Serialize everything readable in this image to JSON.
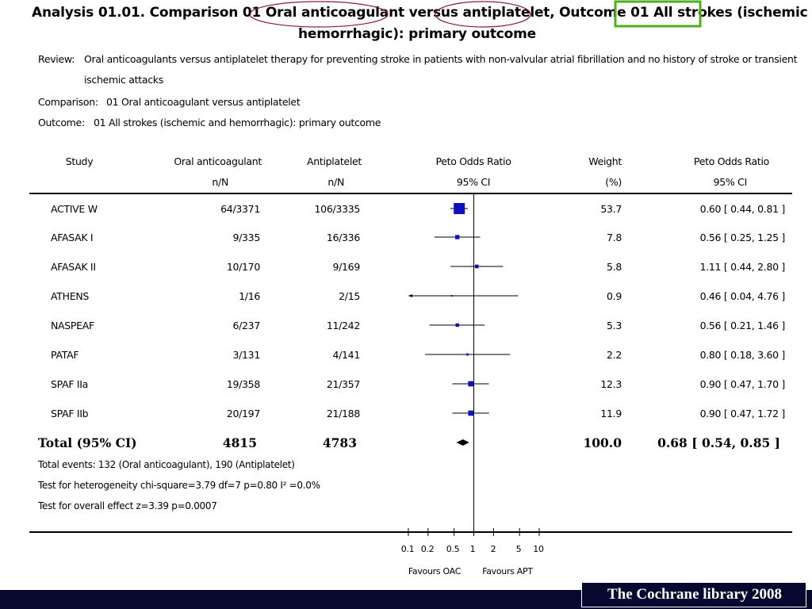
{
  "title": {
    "line1": "Analysis 01.01.    Comparison 01 Oral anticoagulant versus antiplatelet, Outcome 01 All strokes (ischemic and",
    "line2": "hemorrhagic): primary outcome"
  },
  "meta": {
    "review_label": "Review:",
    "review_text_1": "Oral anticoagulants versus antiplatelet therapy for preventing stroke in patients with non-valvular atrial fibrillation and no history of stroke or transient",
    "review_text_2": "ischemic attacks",
    "comparison_label": "Comparison:",
    "comparison_text": "01 Oral anticoagulant versus antiplatelet",
    "outcome_label": "Outcome:",
    "outcome_text": "01 All strokes (ischemic and hemorrhagic): primary outcome"
  },
  "headers": {
    "study": "Study",
    "oac": "Oral anticoagulant",
    "oac_sub": "n/N",
    "apt": "Antiplatelet",
    "apt_sub": "n/N",
    "peto": "Peto Odds Ratio",
    "peto_sub": "95% CI",
    "weight": "Weight",
    "weight_sub": "(%)",
    "peto2": "Peto Odds Ratio",
    "peto2_sub": "95% CI"
  },
  "rows": [
    {
      "study": "ACTIVE W",
      "oac": "64/3371",
      "apt": "106/3335",
      "weight": "53.7",
      "ci": "0.60 [ 0.44, 0.81 ]"
    },
    {
      "study": "AFASAK I",
      "oac": "9/335",
      "apt": "16/336",
      "weight": "7.8",
      "ci": "0.56 [ 0.25, 1.25 ]"
    },
    {
      "study": "AFASAK II",
      "oac": "10/170",
      "apt": "9/169",
      "weight": "5.8",
      "ci": "1.11 [ 0.44, 2.80 ]"
    },
    {
      "study": "ATHENS",
      "oac": "1/16",
      "apt": "2/15",
      "weight": "0.9",
      "ci": "0.46 [ 0.04, 4.76 ]"
    },
    {
      "study": "NASPEAF",
      "oac": "6/237",
      "apt": "11/242",
      "weight": "5.3",
      "ci": "0.56 [ 0.21, 1.46 ]"
    },
    {
      "study": "PATAF",
      "oac": "3/131",
      "apt": "4/141",
      "weight": "2.2",
      "ci": "0.80 [ 0.18, 3.60 ]"
    },
    {
      "study": "SPAF IIa",
      "oac": "19/358",
      "apt": "21/357",
      "weight": "12.3",
      "ci": "0.90 [ 0.47, 1.70 ]"
    },
    {
      "study": "SPAF IIb",
      "oac": "20/197",
      "apt": "21/188",
      "weight": "11.9",
      "ci": "0.90 [ 0.47, 1.72 ]"
    }
  ],
  "total": {
    "label": "Total (95% CI)",
    "oac": "4815",
    "apt": "4783",
    "weight": "100.0",
    "ci": "0.68 [ 0.54, 0.85 ]"
  },
  "footnotes": {
    "events": "Total events: 132 (Oral anticoagulant), 190 (Antiplatelet)",
    "heterogeneity": "Test for heterogeneity chi-square=3.79 df=7 p=0.80 I² =0.0%",
    "overall": "Test for overall effect z=3.39    p=0.0007"
  },
  "axis": {
    "ticks": [
      "0.1",
      "0.2",
      "0.5",
      "1",
      "2",
      "5",
      "10"
    ],
    "favours_left": "Favours OAC",
    "favours_right": "Favours APT"
  },
  "footer": "The Cochrane library 2008",
  "colors": {
    "ellipse": "#8b1a3a",
    "highlight_box": "#4caf1f",
    "marker": "#1010c0",
    "footer_bg": "#05082f"
  },
  "chart_data": {
    "type": "forest",
    "x_scale": "log",
    "xlim": [
      0.1,
      10
    ],
    "reference_line": 1,
    "studies": [
      {
        "name": "ACTIVE W",
        "or": 0.6,
        "lo": 0.44,
        "hi": 0.81,
        "weight": 53.7
      },
      {
        "name": "AFASAK I",
        "or": 0.56,
        "lo": 0.25,
        "hi": 1.25,
        "weight": 7.8
      },
      {
        "name": "AFASAK II",
        "or": 1.11,
        "lo": 0.44,
        "hi": 2.8,
        "weight": 5.8
      },
      {
        "name": "ATHENS",
        "or": 0.46,
        "lo": 0.04,
        "hi": 4.76,
        "weight": 0.9
      },
      {
        "name": "NASPEAF",
        "or": 0.56,
        "lo": 0.21,
        "hi": 1.46,
        "weight": 5.3
      },
      {
        "name": "PATAF",
        "or": 0.8,
        "lo": 0.18,
        "hi": 3.6,
        "weight": 2.2
      },
      {
        "name": "SPAF IIa",
        "or": 0.9,
        "lo": 0.47,
        "hi": 1.7,
        "weight": 12.3
      },
      {
        "name": "SPAF IIb",
        "or": 0.9,
        "lo": 0.47,
        "hi": 1.72,
        "weight": 11.9
      }
    ],
    "pooled": {
      "or": 0.68,
      "lo": 0.54,
      "hi": 0.85
    }
  }
}
